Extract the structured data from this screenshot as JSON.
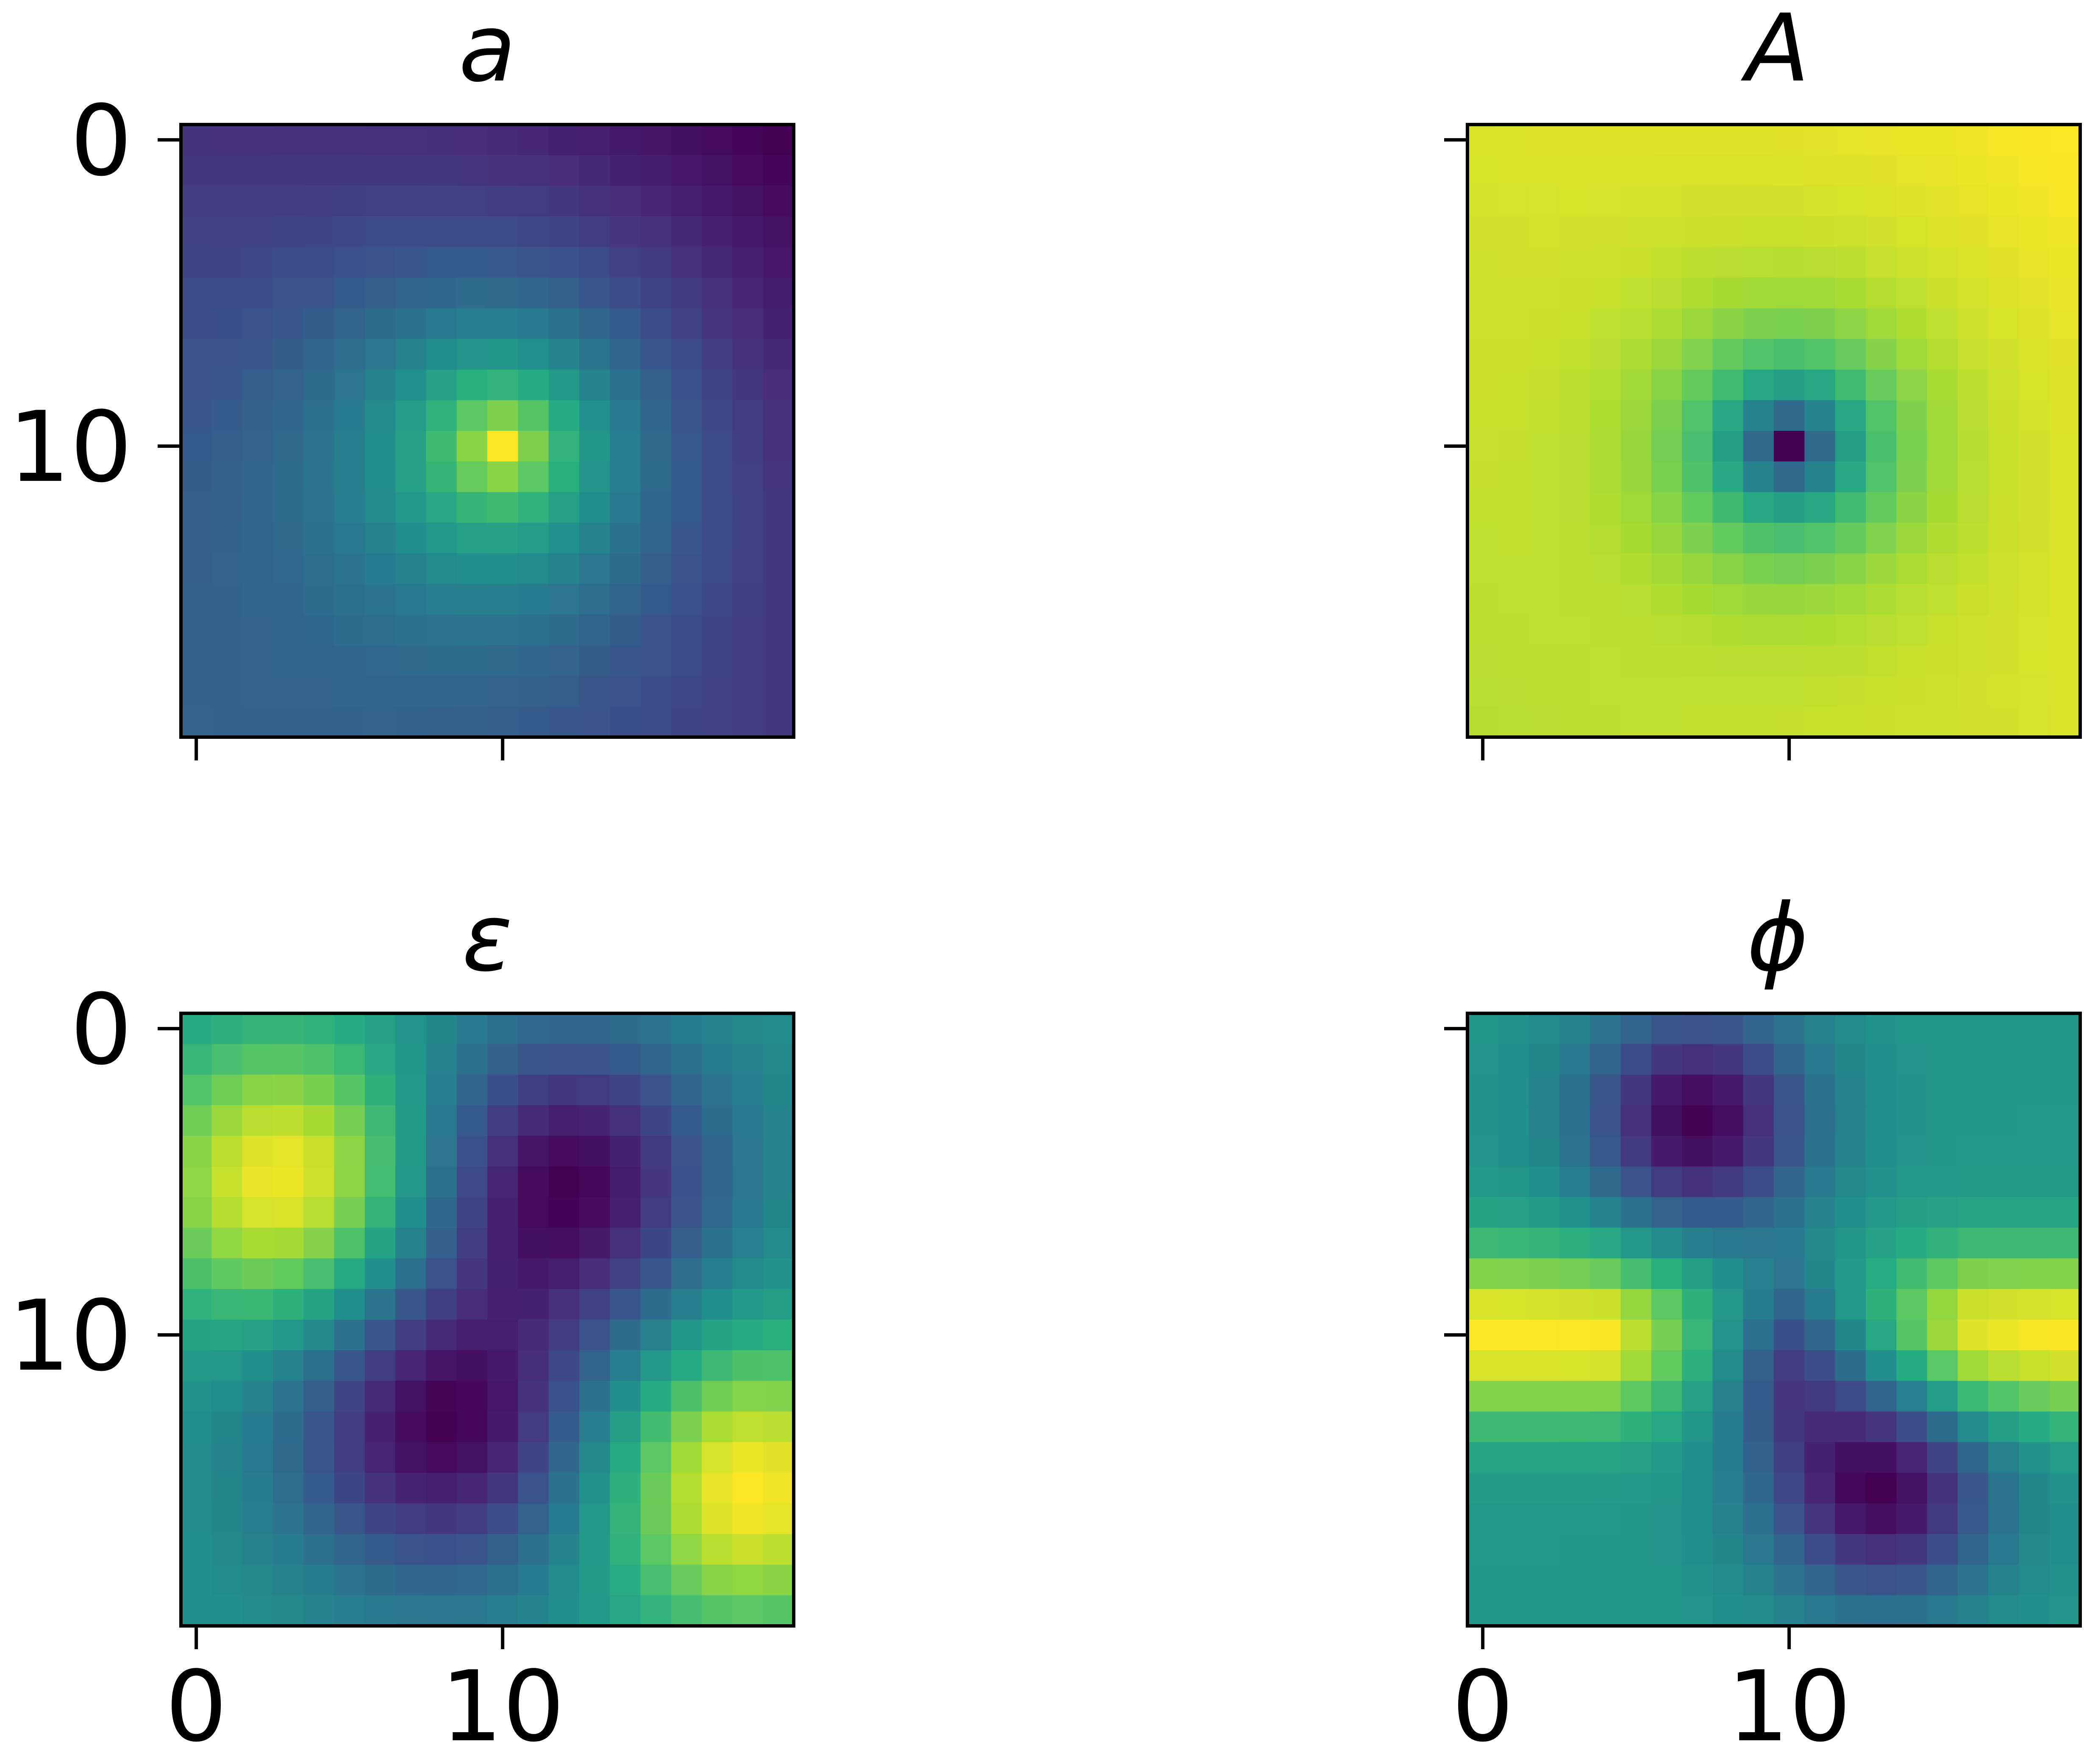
{
  "chart_data": [
    {
      "type": "heatmap",
      "title": "a",
      "colormap": "viridis",
      "grid_size": [
        20,
        20
      ],
      "xticks": [
        0,
        10
      ],
      "yticks": [
        0,
        10
      ],
      "x_tick_labels_visible": false,
      "y_tick_labels_visible": true,
      "pattern": "single peak (max) near row 10, col 10; values fall off smoothly with distance; lowest at top-right and bottom-left corners",
      "peak": {
        "row": 10,
        "col": 10
      }
    },
    {
      "type": "heatmap",
      "title": "A",
      "colormap": "viridis",
      "grid_size": [
        20,
        20
      ],
      "xticks": [
        0,
        10
      ],
      "yticks": [
        0,
        10
      ],
      "x_tick_labels_visible": false,
      "y_tick_labels_visible": false,
      "pattern": "single minimum near row 10, col 10 surrounded by concentric rings rising to maximum at the edges",
      "minimum": {
        "row": 10,
        "col": 10
      }
    },
    {
      "type": "heatmap",
      "title": "ε",
      "colormap": "viridis",
      "grid_size": [
        20,
        20
      ],
      "xticks": [
        0,
        10
      ],
      "yticks": [
        0,
        10
      ],
      "x_tick_labels_visible": true,
      "y_tick_labels_visible": true,
      "pattern": "quadrupole: high in top-left and bottom-right quadrants, low in top-right and bottom-left quadrants",
      "maxima": [
        {
          "row": 5,
          "col": 3
        },
        {
          "row": 15,
          "col": 18
        }
      ],
      "minima": [
        {
          "row": 5,
          "col": 12
        },
        {
          "row": 13,
          "col": 8
        }
      ]
    },
    {
      "type": "heatmap",
      "title": "ϕ",
      "colormap": "viridis",
      "grid_size": [
        20,
        20
      ],
      "xticks": [
        0,
        10
      ],
      "yticks": [
        0,
        10
      ],
      "x_tick_labels_visible": true,
      "y_tick_labels_visible": false,
      "pattern": "high band across rows 8-11 on left and right sides, low lobes at top-center and bottom-right along a diagonal",
      "maxima": [
        {
          "row": 10,
          "col": 3
        },
        {
          "row": 10,
          "col": 17
        }
      ],
      "minima": [
        {
          "row": 3,
          "col": 7
        },
        {
          "row": 15,
          "col": 13
        }
      ]
    }
  ],
  "ticks": {
    "zero": "0",
    "ten": "10"
  }
}
